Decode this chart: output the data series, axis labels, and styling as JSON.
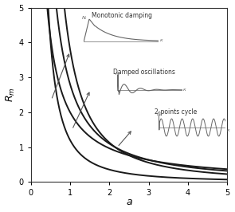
{
  "title": "",
  "xlabel": "a",
  "ylabel": "$R_m$",
  "xlim": [
    0,
    5
  ],
  "ylim": [
    0,
    5
  ],
  "xticks": [
    0,
    1,
    2,
    3,
    4,
    5
  ],
  "yticks": [
    0,
    1,
    2,
    3,
    4,
    5
  ],
  "bg_color": "#ffffff",
  "curve_color": "#1a1a1a",
  "annotation_color": "#777777",
  "label_monotonic": "Monotonic damping",
  "label_damped": "Damped oscillations",
  "label_cycle": "2-points cycle",
  "inset_color": "#666666",
  "curves": [
    {
      "c": 2.0,
      "n": 1.05
    },
    {
      "c": 2.8,
      "n": 1.35
    },
    {
      "c": 3.8,
      "n": 1.75
    },
    {
      "c": 1.2,
      "n": 1.75
    }
  ]
}
